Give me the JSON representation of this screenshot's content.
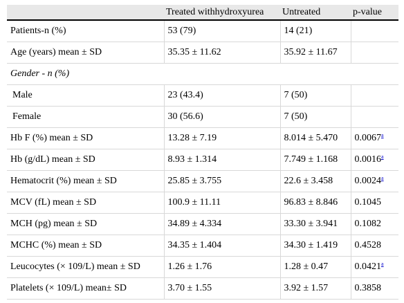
{
  "table": {
    "headers": [
      "",
      "Treated withhydroxyurea",
      "Untreated",
      "p-value"
    ],
    "rows": [
      {
        "label": "Patients-n (%)",
        "treated": "53 (79)",
        "untreated": "14 (21)",
        "p": "",
        "note": ""
      },
      {
        "label": "Age (years) mean ± SD",
        "treated": "35.35 ± 11.62",
        "untreated": "35.92 ± 11.67",
        "p": "",
        "note": ""
      },
      {
        "section": "Gender - n (%)"
      },
      {
        "label": "Male",
        "treated": "23 (43.4)",
        "untreated": "7 (50)",
        "p": "",
        "note": "",
        "indent": true
      },
      {
        "label": "Female",
        "treated": "30 (56.6)",
        "untreated": "7 (50)",
        "p": "",
        "note": "",
        "indent": true
      },
      {
        "label": "Hb F (%) mean ± SD",
        "treated": "13.28 ± 7.19",
        "untreated": "8.014 ± 5.470",
        "p": "0.0067",
        "note": "a"
      },
      {
        "label": "Hb (g/dL) mean ± SD",
        "treated": "8.93 ± 1.314",
        "untreated": "7.749 ± 1.168",
        "p": "0.0016",
        "note": "a"
      },
      {
        "label": "Hematocrit (%) mean ± SD",
        "treated": "25.85 ± 3.755",
        "untreated": "22.6 ± 3.458",
        "p": "0.0024",
        "note": "a"
      },
      {
        "label": "MCV (fL) mean ± SD",
        "treated": "100.9 ± 11.11",
        "untreated": "96.83 ± 8.846",
        "p": "0.1045",
        "note": ""
      },
      {
        "label": "MCH (pg) mean ± SD",
        "treated": "34.89 ± 4.334",
        "untreated": "33.30 ± 3.941",
        "p": "0.1082",
        "note": ""
      },
      {
        "label": "MCHC (%) mean ± SD",
        "treated": "34.35 ± 1.404",
        "untreated": "34.30 ± 1.419",
        "p": "0.4528",
        "note": ""
      },
      {
        "label": "Leucocytes (× 109/L) mean ± SD",
        "treated": "1.26 ± 1.76",
        "untreated": "1.28 ± 0.47",
        "p": "0.0421",
        "note": "a"
      },
      {
        "label": "Platelets (× 109/L) mean± SD",
        "treated": "3.70 ± 1.55",
        "untreated": "3.92 ± 1.57",
        "p": "0.3858",
        "note": ""
      }
    ]
  }
}
